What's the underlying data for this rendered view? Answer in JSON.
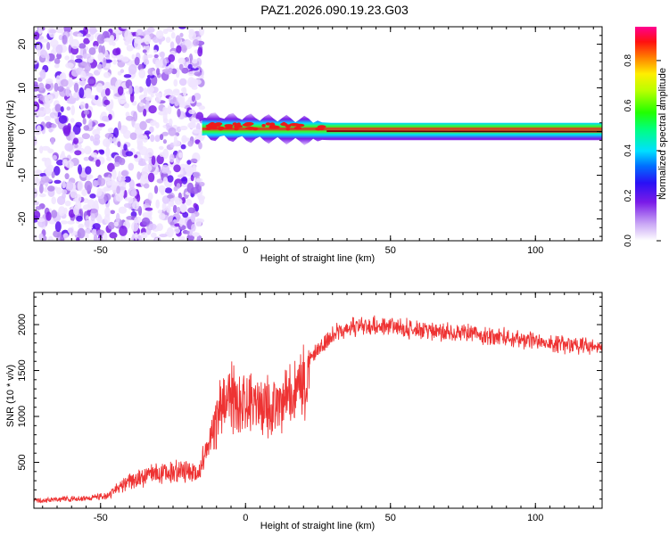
{
  "title": "PAZ1.2026.090.19.23.G03",
  "chart_data": [
    {
      "type": "heatmap",
      "xlabel": "Height of straight line (km)",
      "ylabel": "Frequency (Hz)",
      "xlim": [
        -73,
        123
      ],
      "ylim": [
        -25,
        24
      ],
      "xticks": [
        -50,
        0,
        50,
        100
      ],
      "yticks": [
        -20,
        -10,
        0,
        10,
        20
      ],
      "colorbar": {
        "label": "Normalized spectral amplitude",
        "range": [
          0,
          0.95
        ],
        "ticks": [
          0.0,
          0.2,
          0.4,
          0.6,
          0.8
        ],
        "tick_labels": [
          "0.0",
          "0.2",
          "0.4",
          "0.6",
          "0.8"
        ]
      },
      "regions": [
        {
          "name": "noise",
          "x_range": [
            -73,
            -15
          ],
          "freq_range": [
            -25,
            24
          ],
          "amplitude_range": [
            0.0,
            0.2
          ]
        },
        {
          "name": "signal",
          "x_range": [
            -15,
            123
          ],
          "freq_center_start": 1.2,
          "freq_center_end": 0.0,
          "peak_amplitude": 0.9
        }
      ]
    },
    {
      "type": "line",
      "xlabel": "Height of straight line (km)",
      "ylabel": "SNR (10 * v/v)",
      "xlim": [
        -73,
        123
      ],
      "ylim": [
        0,
        2350
      ],
      "xticks": [
        -50,
        0,
        50,
        100
      ],
      "yticks": [
        500,
        1000,
        1500,
        2000
      ],
      "series": [
        {
          "name": "SNR",
          "color": "#ee3333",
          "envelope": {
            "x": [
              -73,
              -60,
              -48,
              -40,
              -30,
              -22,
              -16,
              -12,
              -8,
              -4,
              0,
              5,
              10,
              15,
              20,
              25,
              30,
              35,
              40,
              50,
              60,
              70,
              80,
              90,
              100,
              110,
              123
            ],
            "y": [
              100,
              120,
              150,
              350,
              450,
              480,
              450,
              900,
              1350,
              1400,
              1300,
              1350,
              1300,
              1400,
              1600,
              1800,
              1950,
              2020,
              2060,
              2050,
              2000,
              1980,
              1960,
              1920,
              1880,
              1840,
              1800
            ]
          }
        }
      ]
    }
  ]
}
